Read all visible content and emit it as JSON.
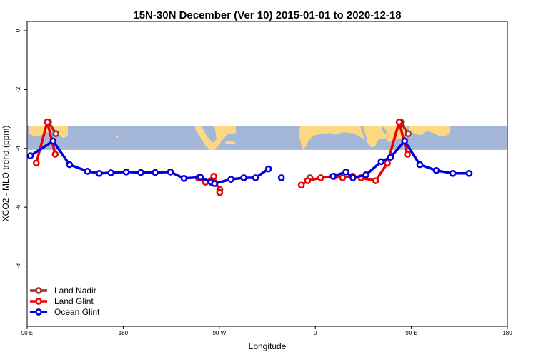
{
  "chart_data": {
    "type": "line",
    "title": "15N-30N December (Ver 10)   2015-01-01 to 2020-12-18",
    "xlabel": "Longitude",
    "ylabel": "XCO2 - MLO trend (ppm)",
    "xlim": [
      90,
      450
    ],
    "ylim": [
      -10,
      0
    ],
    "x_ticks": [
      {
        "value": 90,
        "label": "90 E"
      },
      {
        "value": 180,
        "label": "180"
      },
      {
        "value": 270,
        "label": "90 W"
      },
      {
        "value": 360,
        "label": "0"
      },
      {
        "value": 450,
        "label": "90 E"
      },
      {
        "value": 540,
        "label": "180"
      }
    ],
    "y_ticks": [
      {
        "value": 0,
        "label": "0"
      },
      {
        "value": -2,
        "label": "-2"
      },
      {
        "value": -4,
        "label": "-4"
      },
      {
        "value": -6,
        "label": "-6"
      },
      {
        "value": -8,
        "label": "-8"
      }
    ],
    "legend_position": "bottom-left",
    "grid": false,
    "map_band": {
      "y_top": -3.25,
      "y_bottom": -4.05,
      "ocean_color": "#a4b7d9",
      "land_color": "#fcd981"
    },
    "series": [
      {
        "name": "Land Nadir",
        "color": "#9b2d2d",
        "segments": [
          [
            [
              110.0,
              -3.1
            ],
            [
              116.9,
              -3.5
            ]
          ],
          [
            [
              270.5,
              -5.4
            ]
          ],
          [
            [
              355.0,
              -5.0
            ]
          ],
          [
            [
              440.0,
              -3.1
            ],
            [
              446.9,
              -3.5
            ]
          ]
        ]
      },
      {
        "name": "Land Glint",
        "color": "#ee0000",
        "segments": [
          [
            [
              98.6,
              -4.5
            ],
            [
              108.9,
              -3.1
            ],
            [
              116.3,
              -4.2
            ]
          ],
          [
            [
              250.4,
              -5.0
            ],
            [
              257.1,
              -5.15
            ],
            [
              264.9,
              -4.95
            ],
            [
              270.4,
              -5.5
            ]
          ],
          [
            [
              346.9,
              -5.25
            ],
            [
              352.7,
              -5.1
            ],
            [
              365.1,
              -5.0
            ],
            [
              377.7,
              -4.95
            ],
            [
              385.6,
              -5.0
            ],
            [
              395.1,
              -4.95
            ],
            [
              402.8,
              -5.0
            ],
            [
              416.6,
              -5.1
            ],
            [
              427.6,
              -4.5
            ],
            [
              438.6,
              -3.1
            ],
            [
              446.3,
              -4.2
            ]
          ]
        ]
      },
      {
        "name": "Ocean Glint",
        "color": "#0000dd",
        "segments": [
          [
            [
              93.0,
              -4.25
            ],
            [
              114.3,
              -3.75
            ],
            [
              129.7,
              -4.55
            ],
            [
              146.5,
              -4.78
            ],
            [
              157.5,
              -4.85
            ],
            [
              168.5,
              -4.83
            ],
            [
              182.8,
              -4.8
            ],
            [
              196.5,
              -4.82
            ],
            [
              209.9,
              -4.82
            ],
            [
              224.2,
              -4.8
            ],
            [
              236.9,
              -5.02
            ],
            [
              252.3,
              -4.98
            ],
            [
              262.4,
              -5.15
            ],
            [
              265.5,
              -5.2
            ],
            [
              280.9,
              -5.05
            ],
            [
              293.0,
              -5.0
            ],
            [
              304.0,
              -5.0
            ],
            [
              316.1,
              -4.7
            ]
          ],
          [
            [
              328.2,
              -5.0
            ]
          ],
          [
            [
              376.6,
              -4.95
            ],
            [
              388.7,
              -4.8
            ],
            [
              395.3,
              -5.0
            ],
            [
              407.4,
              -4.9
            ],
            [
              421.7,
              -4.45
            ],
            [
              430.5,
              -4.3
            ],
            [
              443.7,
              -3.75
            ],
            [
              458.0,
              -4.55
            ],
            [
              473.4,
              -4.75
            ],
            [
              488.8,
              -4.85
            ],
            [
              504.2,
              -4.85
            ]
          ]
        ]
      }
    ]
  }
}
